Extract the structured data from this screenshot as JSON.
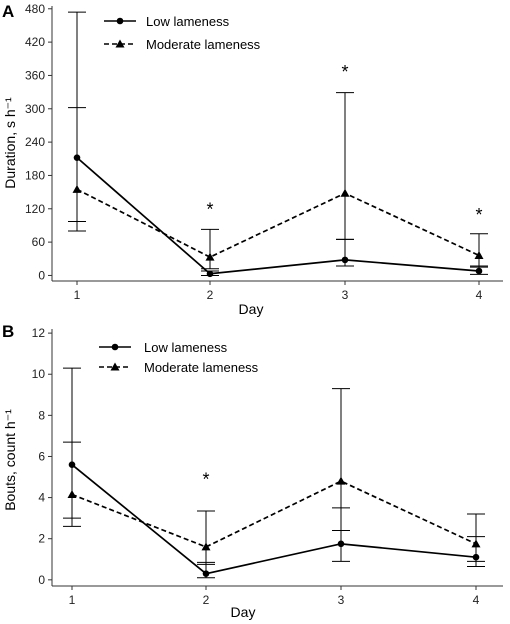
{
  "chart_data": [
    {
      "type": "line",
      "panel": "A",
      "xlabel": "Day",
      "ylabel": "Duration, s h⁻¹",
      "x": [
        1,
        2,
        3,
        4
      ],
      "xticks": [
        "1",
        "2",
        "3",
        "4"
      ],
      "ylim": [
        -10,
        485
      ],
      "yticks": [
        "0",
        "60",
        "120",
        "180",
        "240",
        "300",
        "360",
        "420",
        "480"
      ],
      "grid": false,
      "legend_position": "top-left",
      "series": [
        {
          "name": "Low lameness",
          "style": "solid",
          "marker": "circle",
          "values": [
            212,
            3,
            28,
            8
          ],
          "err_low": [
            97,
            0,
            17,
            2
          ],
          "err_high": [
            302,
            8,
            65,
            17
          ]
        },
        {
          "name": "Moderate lameness",
          "style": "dashed",
          "marker": "triangle",
          "values": [
            155,
            33,
            148,
            36
          ],
          "err_low": [
            80,
            12,
            65,
            15
          ],
          "err_high": [
            474,
            83,
            329,
            75
          ]
        }
      ],
      "significance": [
        {
          "x": 2,
          "label": "*",
          "y": 108
        },
        {
          "x": 3,
          "label": "*",
          "y": 355
        },
        {
          "x": 4,
          "label": "*",
          "y": 98
        }
      ]
    },
    {
      "type": "line",
      "panel": "B",
      "xlabel": "Day",
      "ylabel": "Bouts, count h⁻¹",
      "x": [
        1,
        2,
        3,
        4
      ],
      "xticks": [
        "1",
        "2",
        "3",
        "4"
      ],
      "ylim": [
        -0.3,
        12.2
      ],
      "yticks": [
        "0",
        "2",
        "4",
        "6",
        "8",
        "10",
        "12"
      ],
      "grid": false,
      "legend_position": "top-left",
      "series": [
        {
          "name": "Low lameness",
          "style": "solid",
          "marker": "circle",
          "values": [
            5.6,
            0.3,
            1.75,
            1.1
          ],
          "err_low": [
            3.0,
            0.1,
            0.9,
            0.65
          ],
          "err_high": [
            6.7,
            0.85,
            3.5,
            2.1
          ]
        },
        {
          "name": "Moderate lameness",
          "style": "dashed",
          "marker": "triangle",
          "values": [
            4.15,
            1.6,
            4.8,
            1.75
          ],
          "err_low": [
            2.6,
            0.75,
            2.4,
            0.9
          ],
          "err_high": [
            10.3,
            3.35,
            9.3,
            3.2
          ]
        }
      ],
      "significance": [
        {
          "x": 2,
          "label": "*",
          "y": 4.6
        }
      ]
    }
  ],
  "colors": {
    "line": "#000000",
    "axis": "#333333"
  }
}
